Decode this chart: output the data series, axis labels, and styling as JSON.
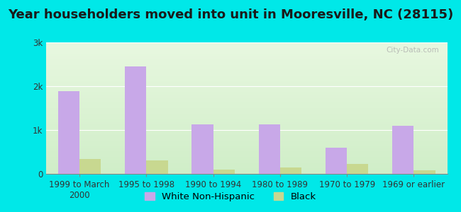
{
  "title": "Year householders moved into unit in Mooresville, NC (28115)",
  "categories": [
    "1999 to March\n2000",
    "1995 to 1998",
    "1990 to 1994",
    "1980 to 1989",
    "1970 to 1979",
    "1969 or earlier"
  ],
  "white_values": [
    1880,
    2450,
    1130,
    1130,
    600,
    1090
  ],
  "black_values": [
    340,
    310,
    95,
    145,
    230,
    80
  ],
  "white_color": "#c8a8e8",
  "black_color": "#c8d890",
  "background_outer": "#00e8e8",
  "bg_top": "#e8f8e0",
  "bg_bottom": "#d0eec8",
  "ylim": [
    0,
    3000
  ],
  "yticks": [
    0,
    1000,
    2000,
    3000
  ],
  "ytick_labels": [
    "0",
    "1k",
    "2k",
    "3k"
  ],
  "bar_width": 0.32,
  "legend_labels": [
    "White Non-Hispanic",
    "Black"
  ],
  "title_fontsize": 13,
  "tick_fontsize": 8.5,
  "legend_fontsize": 9.5,
  "watermark": "City-Data.com"
}
